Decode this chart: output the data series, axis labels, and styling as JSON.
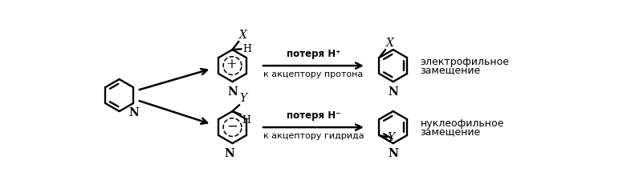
{
  "bg_color": "#ffffff",
  "line_color": "#000000",
  "label_top1": "потеря H⁺",
  "label_top2": "к акцептору протона",
  "label_bot1": "потеря H⁻",
  "label_bot2": "к акцептору гидрида",
  "label_rt1": "электрофильное",
  "label_rt2": "замещение",
  "label_rb1": "нуклеофильное",
  "label_rb2": "замещение"
}
